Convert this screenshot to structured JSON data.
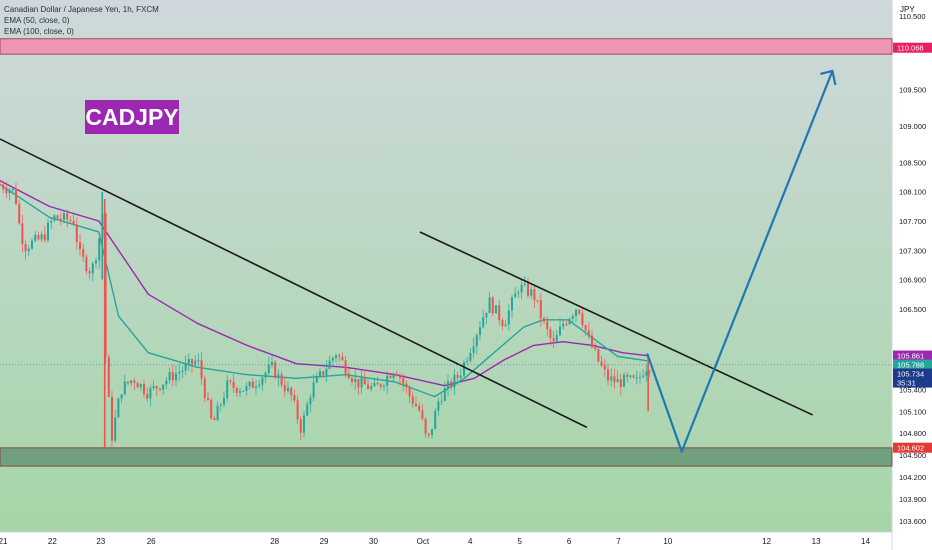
{
  "colors": {
    "background_top": "#cfd8dc",
    "background_bottom": "#a5d6a7",
    "candle_up": "#26a69a",
    "candle_down": "#ef5350",
    "ema50": "#26a69a",
    "ema100": "#9c27b0",
    "zone_top": "#f48fb1",
    "zone_bottom": "#6a9a79",
    "trendline": "#1a1a1a",
    "projection": "#1f77b4",
    "badge": "#9c27b0"
  },
  "legend": {
    "symbol": "Canadian Dollar / Japanese Yen, 1h, FXCM",
    "ema50": "EMA (50, close, 0)",
    "ema100": "EMA (100, close, 0)"
  },
  "badge": "CADJPY",
  "chart_data": {
    "type": "candlestick",
    "ylabel": "JPY",
    "ylim": [
      103.45,
      110.72
    ],
    "yticks": [
      "110.500",
      "109.500",
      "109.000",
      "108.500",
      "108.100",
      "107.700",
      "107.300",
      "106.900",
      "106.500",
      "105.400",
      "105.100",
      "104.800",
      "104.500",
      "104.200",
      "103.900",
      "103.600"
    ],
    "xticks": [
      {
        "label": "21",
        "x": 0.06
      },
      {
        "label": "22",
        "x": 1.06
      },
      {
        "label": "23",
        "x": 2.04
      },
      {
        "label": "26",
        "x": 3.06
      },
      {
        "label": "28",
        "x": 5.56
      },
      {
        "label": "29",
        "x": 6.56
      },
      {
        "label": "30",
        "x": 7.56
      },
      {
        "label": "Oct",
        "x": 8.56
      },
      {
        "label": "4",
        "x": 9.52
      },
      {
        "label": "5",
        "x": 10.52
      },
      {
        "label": "6",
        "x": 11.52
      },
      {
        "label": "7",
        "x": 12.52
      },
      {
        "label": "10",
        "x": 13.52
      },
      {
        "label": "12",
        "x": 15.52
      },
      {
        "label": "13",
        "x": 16.52
      },
      {
        "label": "14",
        "x": 17.52
      }
    ],
    "price_labels": [
      {
        "value": "110.068",
        "price": 110.068,
        "color": "#e91e63"
      },
      {
        "value": "105.861",
        "price": 105.861,
        "color": "#9c27b0"
      },
      {
        "value": "105.788",
        "price": 105.788,
        "color": "#26a69a"
      },
      {
        "value": "105.734",
        "price": 105.734,
        "color": "#1e3a8a"
      },
      {
        "value": "35:31",
        "price": 105.63,
        "color": "#1e3a8a"
      },
      {
        "value": "104.602",
        "price": 104.602,
        "color": "#e53935"
      }
    ],
    "zones": [
      {
        "from": 109.98,
        "to": 110.19,
        "color": "#f48fb1"
      },
      {
        "from": 104.35,
        "to": 104.6,
        "color": "#6a9a79"
      }
    ],
    "ohlc_path": [
      [
        0,
        108.2
      ],
      [
        0.3,
        108.1
      ],
      [
        0.4,
        107.6
      ],
      [
        0.5,
        107.35
      ],
      [
        0.8,
        107.45
      ],
      [
        0.9,
        107.5
      ],
      [
        1.0,
        107.65
      ],
      [
        1.1,
        107.75
      ],
      [
        1.5,
        107.7
      ],
      [
        1.6,
        107.25
      ],
      [
        1.85,
        107.0
      ],
      [
        2.0,
        107.4
      ],
      [
        2.07,
        108.0
      ],
      [
        2.1,
        106.0
      ],
      [
        2.15,
        105.8
      ],
      [
        2.25,
        104.7
      ],
      [
        2.45,
        105.4
      ],
      [
        2.7,
        105.55
      ],
      [
        3.0,
        105.35
      ],
      [
        3.4,
        105.55
      ],
      [
        4.0,
        105.8
      ],
      [
        4.3,
        104.9
      ],
      [
        4.6,
        105.45
      ],
      [
        5.0,
        105.4
      ],
      [
        5.5,
        105.7
      ],
      [
        5.9,
        105.3
      ],
      [
        6.1,
        104.85
      ],
      [
        6.3,
        105.4
      ],
      [
        6.6,
        105.7
      ],
      [
        6.8,
        105.9
      ],
      [
        7.2,
        105.5
      ],
      [
        7.6,
        105.4
      ],
      [
        8.0,
        105.7
      ],
      [
        8.3,
        105.3
      ],
      [
        8.5,
        105.1
      ],
      [
        8.65,
        104.65
      ],
      [
        8.9,
        105.3
      ],
      [
        9.3,
        105.6
      ],
      [
        9.6,
        106.1
      ],
      [
        9.9,
        106.6
      ],
      [
        10.2,
        106.3
      ],
      [
        10.5,
        106.8
      ],
      [
        10.8,
        106.7
      ],
      [
        11.0,
        106.3
      ],
      [
        11.2,
        106.0
      ],
      [
        11.4,
        106.3
      ],
      [
        11.7,
        106.55
      ],
      [
        11.9,
        106.1
      ],
      [
        12.1,
        105.8
      ],
      [
        12.3,
        105.55
      ],
      [
        12.5,
        105.5
      ],
      [
        12.7,
        105.52
      ],
      [
        12.9,
        105.5
      ],
      [
        13.05,
        105.7
      ],
      [
        13.15,
        105.73
      ]
    ],
    "ema50": [
      [
        0,
        108.2
      ],
      [
        1.0,
        107.75
      ],
      [
        2.0,
        107.55
      ],
      [
        2.4,
        106.4
      ],
      [
        3.0,
        105.9
      ],
      [
        4.0,
        105.7
      ],
      [
        5.0,
        105.6
      ],
      [
        6.0,
        105.55
      ],
      [
        7.0,
        105.6
      ],
      [
        8.0,
        105.5
      ],
      [
        8.8,
        105.3
      ],
      [
        9.4,
        105.55
      ],
      [
        10.0,
        105.9
      ],
      [
        10.6,
        106.25
      ],
      [
        11.0,
        106.35
      ],
      [
        11.5,
        106.35
      ],
      [
        12.0,
        106.1
      ],
      [
        12.5,
        105.85
      ],
      [
        13.1,
        105.79
      ]
    ],
    "ema100": [
      [
        0,
        108.25
      ],
      [
        1.0,
        107.9
      ],
      [
        2.0,
        107.7
      ],
      [
        3.0,
        106.7
      ],
      [
        4.0,
        106.3
      ],
      [
        5.0,
        106.0
      ],
      [
        6.0,
        105.75
      ],
      [
        7.0,
        105.7
      ],
      [
        8.0,
        105.6
      ],
      [
        9.0,
        105.45
      ],
      [
        9.6,
        105.55
      ],
      [
        10.2,
        105.8
      ],
      [
        10.8,
        106.0
      ],
      [
        11.4,
        106.05
      ],
      [
        12.0,
        106.0
      ],
      [
        12.6,
        105.9
      ],
      [
        13.1,
        105.86
      ]
    ],
    "trendlines": [
      {
        "from": [
          0,
          108.82
        ],
        "to": [
          11.88,
          104.88
        ]
      },
      {
        "from": [
          8.5,
          107.55
        ],
        "to": [
          16.45,
          105.05
        ]
      }
    ],
    "projection": [
      [
        13.1,
        105.89
      ],
      [
        13.8,
        104.55
      ],
      [
        16.85,
        109.75
      ]
    ]
  }
}
